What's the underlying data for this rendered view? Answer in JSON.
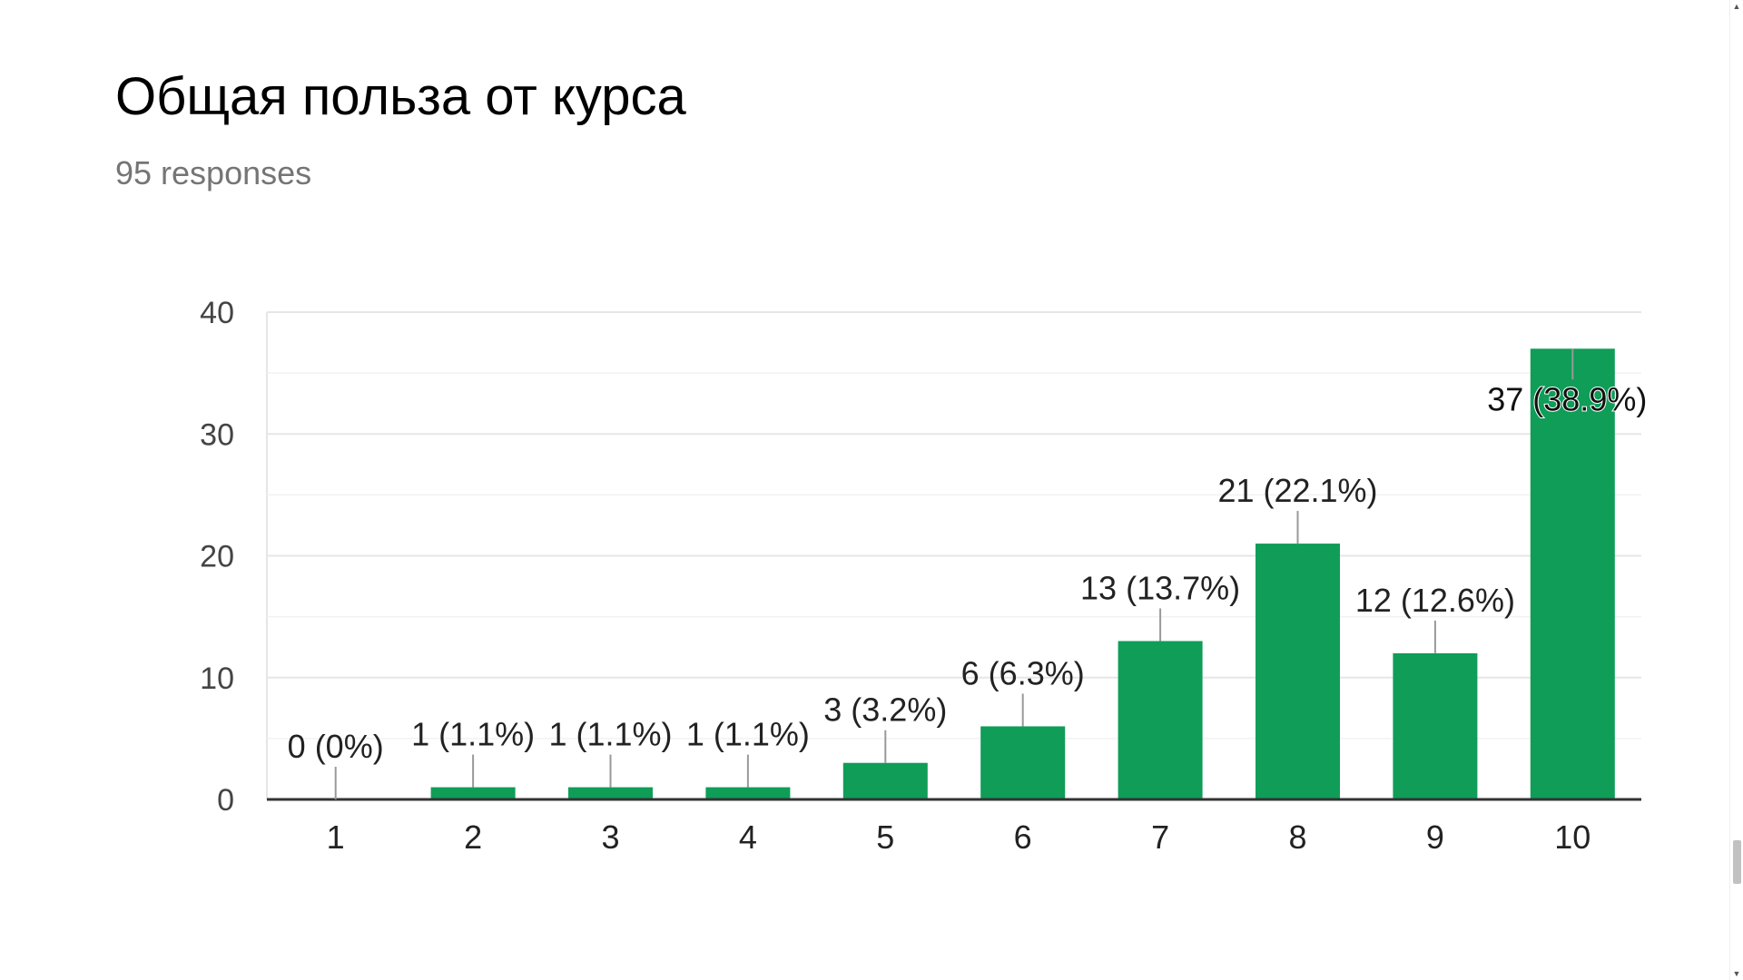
{
  "header": {
    "title": "Общая польза от курса",
    "responses": "95 responses"
  },
  "colors": {
    "bar": "#0f9d58",
    "grid": "#e6e6e6",
    "axis": "#333333",
    "tick_text": "#444444",
    "label_text": "#222222",
    "leader": "#999999"
  },
  "chart_data": {
    "type": "bar",
    "categories": [
      "1",
      "2",
      "3",
      "4",
      "5",
      "6",
      "7",
      "8",
      "9",
      "10"
    ],
    "values": [
      0,
      1,
      1,
      1,
      3,
      6,
      13,
      21,
      12,
      37
    ],
    "data_labels": [
      "0 (0%)",
      "1 (1.1%)",
      "1 (1.1%)",
      "1 (1.1%)",
      "3 (3.2%)",
      "6 (6.3%)",
      "13 (13.7%)",
      "21 (22.1%)",
      "12 (12.6%)",
      "37 (38.9%)"
    ],
    "ylim": [
      0,
      40
    ],
    "yticks": [
      0,
      10,
      20,
      30,
      40
    ],
    "grid": true,
    "legend": "none"
  },
  "scrollbar": {
    "up_icon": "▲",
    "down_icon": "▼"
  }
}
